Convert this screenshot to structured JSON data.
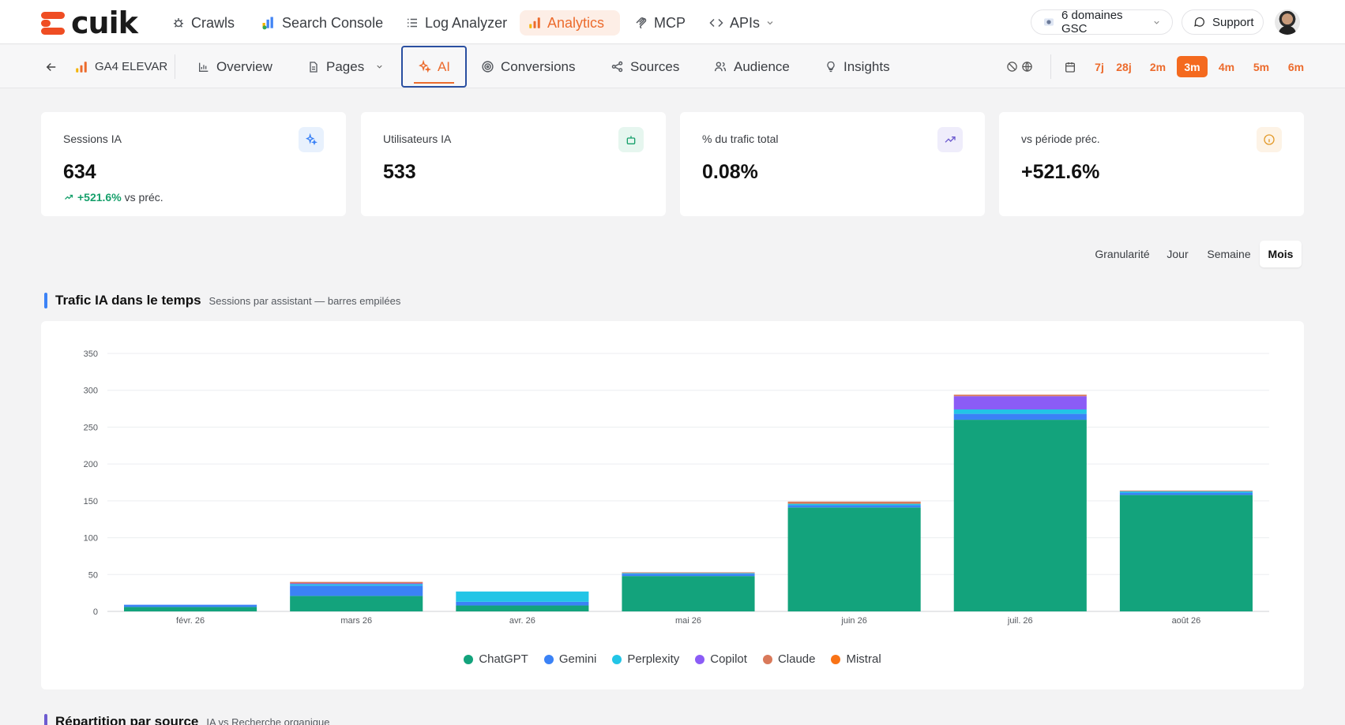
{
  "brand": {
    "name": "cuik"
  },
  "topnav": {
    "items": [
      {
        "label": "Crawls",
        "icon": "bug-icon"
      },
      {
        "label": "Search Console",
        "icon": "search-console-icon"
      },
      {
        "label": "Log Analyzer",
        "icon": "list-icon"
      },
      {
        "label": "Analytics",
        "icon": "bar-chart-icon",
        "active": true
      },
      {
        "label": "MCP",
        "icon": "mcp-icon"
      },
      {
        "label": "APIs",
        "icon": "code-icon"
      }
    ],
    "domains_label": "6 domaines GSC",
    "support_label": "Support"
  },
  "subnav": {
    "property": "GA4 ELEVAR",
    "tabs": [
      {
        "label": "Overview"
      },
      {
        "label": "Pages"
      },
      {
        "label": "AI",
        "active": true
      },
      {
        "label": "Conversions"
      },
      {
        "label": "Sources"
      },
      {
        "label": "Audience"
      },
      {
        "label": "Insights"
      }
    ],
    "ranges": [
      "7j",
      "28j",
      "2m",
      "3m",
      "4m",
      "5m",
      "6m"
    ],
    "active_range": "3m"
  },
  "kpis": [
    {
      "label": "Sessions IA",
      "value": "634",
      "delta": "+521.6%",
      "delta_suffix": "vs préc.",
      "icon": "sparkle-icon",
      "icon_bg": "#e8f1fd",
      "icon_color": "#3b82f6"
    },
    {
      "label": "Utilisateurs IA",
      "value": "533",
      "icon": "robot-icon",
      "icon_bg": "#e6f6ef",
      "icon_color": "#16a06b"
    },
    {
      "label": "% du trafic total",
      "value": "0.08%",
      "icon": "trend-up-icon",
      "icon_bg": "#efedfb",
      "icon_color": "#6d5bd0"
    },
    {
      "label": "vs période préc.",
      "value": "+521.6%",
      "icon": "info-icon",
      "icon_bg": "#fdf3e6",
      "icon_color": "#e39a2a"
    }
  ],
  "granularity": {
    "label": "Granularité",
    "options": [
      "Jour",
      "Semaine",
      "Mois"
    ],
    "active": "Mois"
  },
  "section1": {
    "title": "Trafic IA dans le temps",
    "subtitle": "Sessions par assistant — barres empilées"
  },
  "section2": {
    "title": "Répartition par source",
    "subtitle": "IA vs Recherche organique"
  },
  "chart_data": {
    "type": "bar",
    "stacked": true,
    "categories": [
      "févr. 26",
      "mars 26",
      "avr. 26",
      "mai 26",
      "juin 26",
      "juil. 26",
      "août 26"
    ],
    "series": [
      {
        "name": "ChatGPT",
        "color": "#13a37c",
        "values": [
          6,
          21,
          8,
          48,
          141,
          260,
          158
        ]
      },
      {
        "name": "Gemini",
        "color": "#3b82f6",
        "values": [
          3,
          14,
          5,
          3,
          3,
          8,
          3
        ]
      },
      {
        "name": "Perplexity",
        "color": "#22c5e6",
        "values": [
          0,
          2,
          14,
          1,
          2,
          6,
          2
        ]
      },
      {
        "name": "Copilot",
        "color": "#8b5cf6",
        "values": [
          0,
          1,
          0,
          0,
          0,
          18,
          0
        ]
      },
      {
        "name": "Claude",
        "color": "#d9795a",
        "values": [
          0,
          2,
          0,
          1,
          3,
          2,
          1
        ]
      },
      {
        "name": "Mistral",
        "color": "#f97316",
        "values": [
          0,
          0,
          0,
          0,
          0,
          0,
          0
        ]
      }
    ],
    "yticks": [
      0,
      50,
      100,
      150,
      200,
      250,
      300,
      350
    ],
    "ylim": [
      0,
      350
    ],
    "grid": true,
    "legend_position": "bottom"
  }
}
